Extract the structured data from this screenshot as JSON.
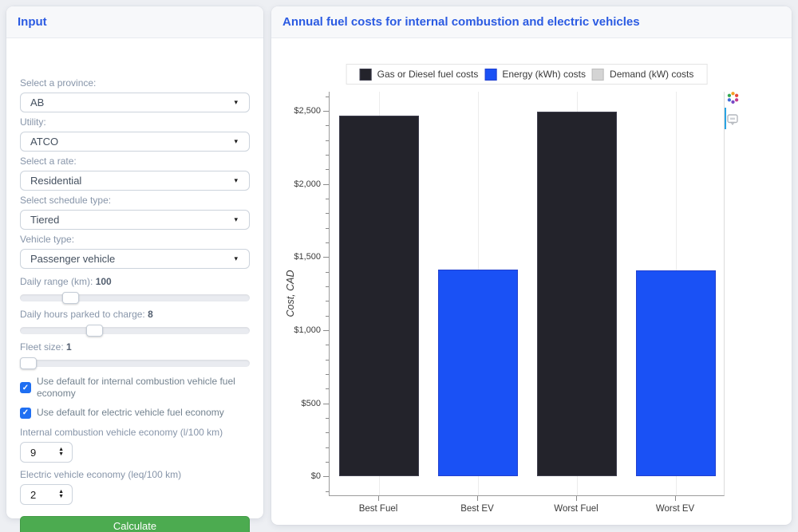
{
  "left_panel": {
    "title": "Input",
    "selects": [
      {
        "label": "Select a province:",
        "value": "AB"
      },
      {
        "label": "Utility:",
        "value": "ATCO"
      },
      {
        "label": "Select a rate:",
        "value": "Residential"
      },
      {
        "label": "Select schedule type:",
        "value": "Tiered"
      },
      {
        "label": "Vehicle type:",
        "value": "Passenger vehicle"
      }
    ],
    "sliders": [
      {
        "label": "Daily range (km):",
        "value": "100",
        "fraction": 0.2
      },
      {
        "label": "Daily hours parked to charge:",
        "value": "8",
        "fraction": 0.31
      },
      {
        "label": "Fleet size:",
        "value": "1",
        "fraction": 0.0
      }
    ],
    "checkboxes": [
      {
        "label": "Use default for internal combustion vehicle fuel economy",
        "checked": true,
        "check_glyph": "✓"
      },
      {
        "label": "Use default for electric vehicle fuel economy",
        "checked": true,
        "check_glyph": "✓"
      }
    ],
    "numbers": [
      {
        "label": "Internal combustion vehicle economy (l/100 km)",
        "value": "9"
      },
      {
        "label": "Electric vehicle economy (leq/100 km)",
        "value": "2"
      }
    ],
    "button_label": "Calculate"
  },
  "right_panel": {
    "title": "Annual fuel costs for internal combustion and electric vehicles",
    "modebar_icons": [
      "plotly-logo-icon",
      "annotation-icon"
    ]
  },
  "colors": {
    "panel_title": "#2b5be2",
    "calculate_button": "#4cab50",
    "checkbox": "#1f6ff2",
    "active_indicator": "#29a3e3",
    "page_background": "#edeff3"
  },
  "chart_data": {
    "type": "bar",
    "title": "Annual fuel costs for internal combustion and electric vehicles",
    "categories": [
      "Best Fuel",
      "Best EV",
      "Worst Fuel",
      "Worst EV"
    ],
    "series": [
      {
        "name": "Gas or Diesel fuel costs",
        "color": "#23232b",
        "border": "#3e3e4e",
        "values": [
          2465,
          0,
          2495,
          0
        ]
      },
      {
        "name": "Energy (kWh) costs",
        "color": "#1a51f5",
        "border": "#2240cf",
        "values": [
          0,
          1415,
          0,
          1410
        ]
      },
      {
        "name": "Demand (kW) costs",
        "color": "#d4d4d4",
        "border": "#bcbcbc",
        "values": [
          0,
          0,
          0,
          0
        ]
      }
    ],
    "barmode": "stack",
    "xlabel": "",
    "ylabel": "Cost, CAD",
    "ylim": [
      -135,
      2630
    ],
    "ytick_values": [
      0,
      500,
      1000,
      1500,
      2000,
      2500
    ],
    "ytick_labels": [
      "$0",
      "$500",
      "$1,000",
      "$1,500",
      "$2,000",
      "$2,500"
    ],
    "minor_tick_step": 100,
    "grid": "vertical-category-lines",
    "legend_position": "top-center"
  }
}
